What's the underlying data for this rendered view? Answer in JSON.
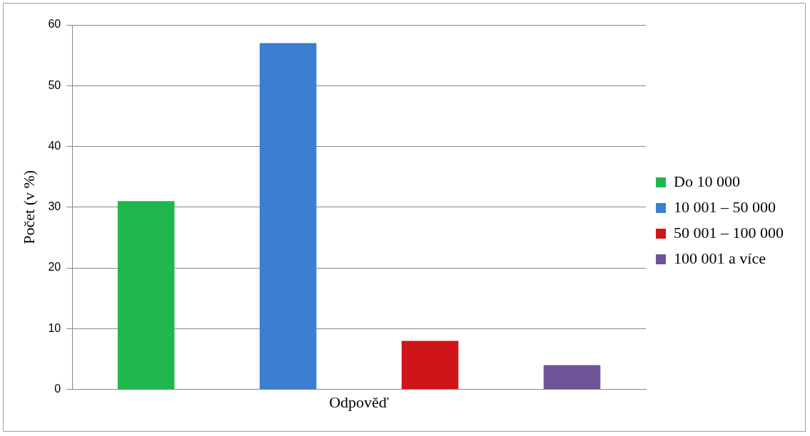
{
  "chart_data": {
    "type": "bar",
    "ylabel": "Počet (v %)",
    "categories": [
      "Odpověď"
    ],
    "series": [
      {
        "name": "Do 10 000",
        "color": "#1fb84f",
        "values": [
          31
        ]
      },
      {
        "name": "10 001 – 50 000",
        "color": "#3a7fd0",
        "values": [
          57
        ]
      },
      {
        "name": "50 001 – 100 000",
        "color": "#d0151a",
        "values": [
          8
        ]
      },
      {
        "name": "100 001 a více",
        "color": "#6e5497",
        "values": [
          4
        ]
      }
    ],
    "ylim": [
      0,
      60
    ],
    "yticks": [
      0,
      10,
      20,
      30,
      40,
      50,
      60
    ],
    "grid": "y",
    "legend": "right"
  }
}
